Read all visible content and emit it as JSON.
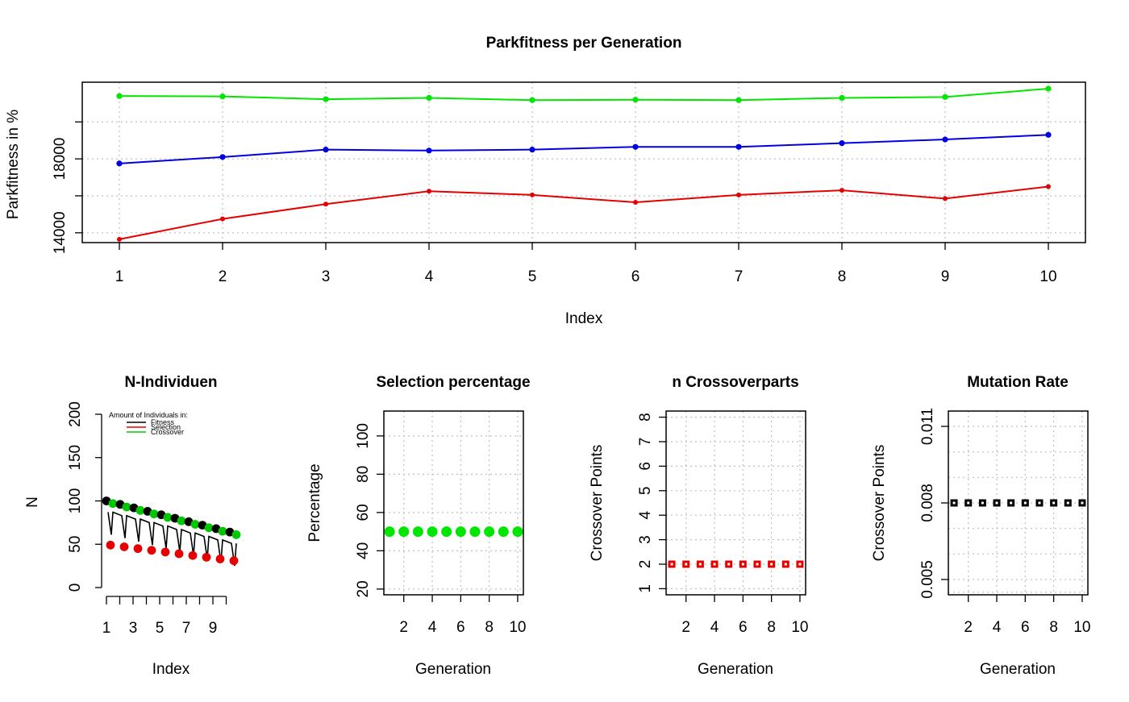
{
  "chart_data": [
    {
      "id": "parkfitness",
      "type": "line",
      "title": "Parkfitness per Generation",
      "xlabel": "Index",
      "ylabel": "Parkfitness in %",
      "x": [
        1,
        2,
        3,
        4,
        5,
        6,
        7,
        8,
        9,
        10
      ],
      "xlim": [
        1,
        10
      ],
      "ylim": [
        13600,
        21800
      ],
      "ytick_values": [
        14000,
        16000,
        18000,
        20000
      ],
      "ytick_labels": [
        "14000",
        "",
        "18000",
        ""
      ],
      "grid": true,
      "series": [
        {
          "color": "#00e600",
          "values": [
            21400,
            21380,
            21230,
            21300,
            21180,
            21200,
            21180,
            21300,
            21350,
            21800
          ]
        },
        {
          "color": "#0000e6",
          "values": [
            17750,
            18100,
            18500,
            18450,
            18500,
            18650,
            18650,
            18850,
            19050,
            19300
          ]
        },
        {
          "color": "#e60000",
          "values": [
            13650,
            14750,
            15550,
            16250,
            16050,
            15650,
            16050,
            16300,
            15850,
            16500
          ]
        }
      ]
    },
    {
      "id": "n-individuen",
      "type": "scatter",
      "title": "N-Individuen",
      "xlabel": "Index",
      "ylabel": "N",
      "ylim": [
        0,
        200
      ],
      "ytick_values": [
        0,
        50,
        100,
        150,
        200
      ],
      "xtick_labels": [
        "1",
        "3",
        "5",
        "7",
        "9"
      ],
      "legend": {
        "title": "Amount of Individuals in:",
        "position": "top",
        "items": [
          {
            "label": "Fitness",
            "color": "#000000"
          },
          {
            "label": "Selection",
            "color": "#e60000"
          },
          {
            "label": "Crossover",
            "color": "#00c800"
          }
        ]
      },
      "series": [
        {
          "color": "#000000",
          "values": [
            100,
            96,
            92,
            88,
            84,
            80,
            76,
            72,
            68,
            64
          ]
        },
        {
          "color": "#00c800",
          "values": [
            97,
            93,
            89,
            85,
            81,
            77,
            73,
            69,
            65,
            61
          ]
        },
        {
          "color": "#e60000",
          "values": [
            49,
            47,
            45,
            43,
            41,
            39,
            37,
            35,
            33,
            31
          ]
        }
      ]
    },
    {
      "id": "selection-percentage",
      "type": "scatter",
      "title": "Selection percentage",
      "xlabel": "Generation",
      "ylabel": "Percentage",
      "x": [
        1,
        2,
        3,
        4,
        5,
        6,
        7,
        8,
        9,
        10
      ],
      "xlim": [
        0.6,
        10.4
      ],
      "ylim": [
        17,
        113
      ],
      "ytick_values": [
        20,
        40,
        60,
        80,
        100
      ],
      "xtick_values": [
        2,
        4,
        6,
        8,
        10
      ],
      "grid": true,
      "series": [
        {
          "color": "#00e600",
          "values": [
            50,
            50,
            50,
            50,
            50,
            50,
            50,
            50,
            50,
            50
          ]
        }
      ]
    },
    {
      "id": "n-crossoverparts",
      "type": "scatter",
      "title": "n Crossoverparts",
      "xlabel": "Generation",
      "ylabel": "Crossover Points",
      "x": [
        1,
        2,
        3,
        4,
        5,
        6,
        7,
        8,
        9,
        10
      ],
      "xlim": [
        0.6,
        10.4
      ],
      "ylim": [
        0.75,
        8.25
      ],
      "ytick_values": [
        1,
        2,
        3,
        4,
        5,
        6,
        7,
        8
      ],
      "xtick_values": [
        2,
        4,
        6,
        8,
        10
      ],
      "grid": true,
      "series": [
        {
          "color": "#e60000",
          "values": [
            2,
            2,
            2,
            2,
            2,
            2,
            2,
            2,
            2,
            2
          ]
        }
      ]
    },
    {
      "id": "mutation-rate",
      "type": "scatter",
      "title": "Mutation Rate",
      "xlabel": "Generation",
      "ylabel": "Crossover Points",
      "x": [
        1,
        2,
        3,
        4,
        5,
        6,
        7,
        8,
        9,
        10
      ],
      "xlim": [
        0.6,
        10.4
      ],
      "ylim": [
        0.0044,
        0.0116
      ],
      "ytick_values": [
        0.005,
        0.008,
        0.011
      ],
      "ytick_labels": [
        "0.005",
        "0.008",
        "0.011"
      ],
      "ygrid_values": [
        0.0045,
        0.005,
        0.006,
        0.007,
        0.008,
        0.009,
        0.01,
        0.011
      ],
      "xtick_values": [
        2,
        4,
        6,
        8,
        10
      ],
      "grid": true,
      "series": [
        {
          "color": "#000000",
          "values": [
            0.008,
            0.008,
            0.008,
            0.008,
            0.008,
            0.008,
            0.008,
            0.008,
            0.008,
            0.008
          ]
        }
      ]
    }
  ]
}
